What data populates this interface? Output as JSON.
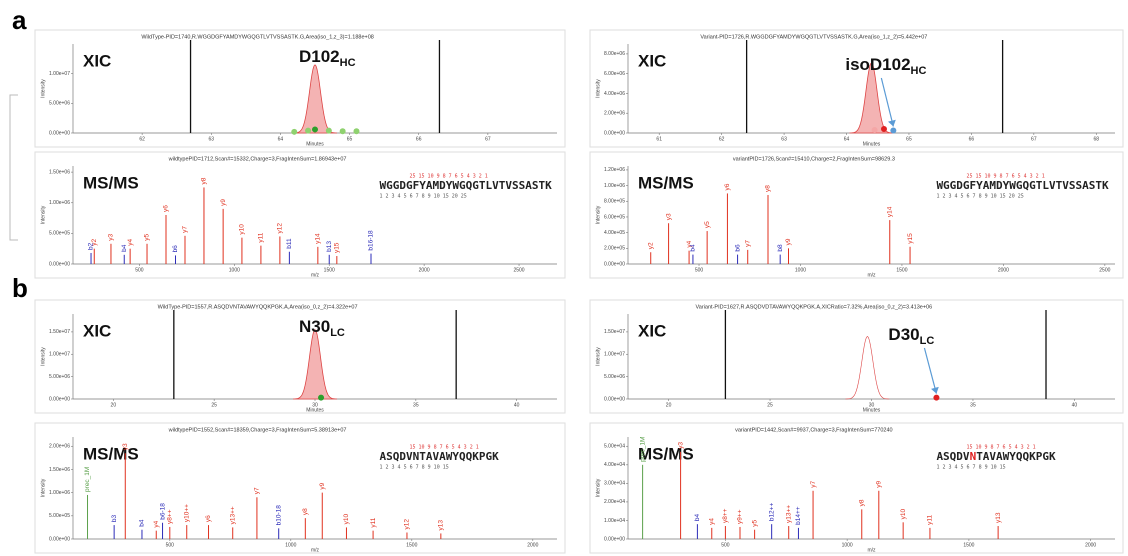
{
  "figure_labels": [
    "a",
    "b"
  ],
  "chart_data": [
    {
      "type": "area",
      "header": "WildType-PID=1740,R.WGGDGFYAMDYWGQGTLVTVSSASTK.G,Area(iso_1,z_3)=1.188e+08",
      "tag": "XIC",
      "label": {
        "text": "D102",
        "sub": "HC"
      },
      "arrow": false,
      "x_label": "Minutes",
      "y_label": "Intensity",
      "xlim": [
        61,
        68
      ],
      "xticks": [
        62,
        63,
        64,
        65,
        66,
        67
      ],
      "ylim": [
        0,
        15000000
      ],
      "yticks": [
        {
          "value": 0,
          "label": "0.00e+00"
        },
        {
          "value": 5000000,
          "label": "5.00e+06"
        },
        {
          "value": 10000000,
          "label": "1.00e+07"
        }
      ],
      "windows": [
        62.7,
        66.3
      ],
      "peaks": [
        {
          "rt": 64.5,
          "height": 11500000,
          "style": "filled"
        }
      ],
      "points": [
        {
          "rt": 64.2,
          "height": 200000,
          "color": "#8fd16f"
        },
        {
          "rt": 64.4,
          "height": 400000,
          "color": "#8fd16f"
        },
        {
          "rt": 64.5,
          "height": 600000,
          "color": "#2ca02c"
        },
        {
          "rt": 64.7,
          "height": 400000,
          "color": "#8fd16f"
        },
        {
          "rt": 64.9,
          "height": 300000,
          "color": "#8fd16f"
        },
        {
          "rt": 65.1,
          "height": 300000,
          "color": "#8fd16f"
        }
      ]
    },
    {
      "type": "area",
      "header": "Variant-PID=1726,R.WGGDGFYAMDYWGQGTLVTVSSASTK.G,Area(iso_1,z_2)=5.442e+07",
      "tag": "XIC",
      "label": {
        "text": "isoD102",
        "sub": "HC"
      },
      "arrow": true,
      "x_label": "Minutes",
      "y_label": "Intensity",
      "xlim": [
        60.5,
        68.3
      ],
      "xticks": [
        61,
        62,
        63,
        64,
        65,
        66,
        67,
        68
      ],
      "ylim": [
        0,
        9000000
      ],
      "yticks": [
        {
          "value": 0,
          "label": "0.00e+00"
        },
        {
          "value": 2000000,
          "label": "2.00e+06"
        },
        {
          "value": 4000000,
          "label": "4.00e+06"
        },
        {
          "value": 6000000,
          "label": "6.00e+06"
        },
        {
          "value": 8000000,
          "label": "8.00e+06"
        }
      ],
      "windows": [
        62.4,
        66.5
      ],
      "peaks": [
        {
          "rt": 64.4,
          "height": 7100000,
          "style": "filled"
        }
      ],
      "points": [
        {
          "rt": 64.45,
          "height": 300000,
          "color": "#f4a6a6"
        },
        {
          "rt": 64.6,
          "height": 400000,
          "color": "#e02020"
        },
        {
          "rt": 64.75,
          "height": 250000,
          "color": "#5b9bd5"
        }
      ]
    },
    {
      "type": "stem",
      "header": "wildtypePID=1712,Scan#=15332,Charge=3,FragIntenSum=1.86943e+07",
      "tag": "MS/MS",
      "sequence": [
        "WGGDGFYAMDYWGQGTLVTVSSASTK"
      ],
      "highlight": -1,
      "ladder_top": "25        15      10 9 8 7 6 5 4 3 2 1",
      "ladder_bottom": "1 2 3 4 5 6 7 8 9 10       15        20        25",
      "x_label": "m/z",
      "y_label": "Intensity",
      "xlim": [
        150,
        2700
      ],
      "xticks": [
        500,
        1000,
        1500,
        2000,
        2500
      ],
      "ylim": [
        0,
        1600000
      ],
      "yticks": [
        {
          "value": 0,
          "label": "0.00e+00"
        },
        {
          "value": 500000,
          "label": "5.00e+05"
        },
        {
          "value": 1000000,
          "label": "1.00e+06"
        },
        {
          "value": 1500000,
          "label": "1.50e+06"
        }
      ],
      "peaks": [
        {
          "ion": "b2",
          "mz": 245,
          "intensity": 180000,
          "series": "b"
        },
        {
          "ion": "y2",
          "mz": 262,
          "intensity": 250000,
          "series": "y"
        },
        {
          "ion": "y3",
          "mz": 350,
          "intensity": 330000,
          "series": "y"
        },
        {
          "ion": "b4",
          "mz": 420,
          "intensity": 150000,
          "series": "b"
        },
        {
          "ion": "y4",
          "mz": 451,
          "intensity": 250000,
          "series": "y"
        },
        {
          "ion": "y5",
          "mz": 540,
          "intensity": 330000,
          "series": "y"
        },
        {
          "ion": "y6",
          "mz": 640,
          "intensity": 800000,
          "series": "y"
        },
        {
          "ion": "b6",
          "mz": 690,
          "intensity": 140000,
          "series": "b"
        },
        {
          "ion": "y7",
          "mz": 740,
          "intensity": 460000,
          "series": "y"
        },
        {
          "ion": "y8",
          "mz": 840,
          "intensity": 1250000,
          "series": "y"
        },
        {
          "ion": "y9",
          "mz": 941,
          "intensity": 900000,
          "series": "y"
        },
        {
          "ion": "y10",
          "mz": 1040,
          "intensity": 430000,
          "series": "y"
        },
        {
          "ion": "y11",
          "mz": 1140,
          "intensity": 300000,
          "series": "y"
        },
        {
          "ion": "y12",
          "mz": 1240,
          "intensity": 450000,
          "series": "y"
        },
        {
          "ion": "b11",
          "mz": 1290,
          "intensity": 200000,
          "series": "b"
        },
        {
          "ion": "y14",
          "mz": 1440,
          "intensity": 280000,
          "series": "y"
        },
        {
          "ion": "b13",
          "mz": 1500,
          "intensity": 150000,
          "series": "b"
        },
        {
          "ion": "y15",
          "mz": 1540,
          "intensity": 130000,
          "series": "y"
        },
        {
          "ion": "b16-18",
          "mz": 1720,
          "intensity": 170000,
          "series": "b"
        }
      ]
    },
    {
      "type": "stem",
      "header": "variantPID=1726,Scan#=15410,Charge=2,FragIntenSum=98629.3",
      "tag": "MS/MS",
      "sequence": [
        "WGGDGFYAMDYWGQGTLVTVSSASTK"
      ],
      "highlight": -1,
      "ladder_top": "25        15      10 9 8 7 6 5 4 3 2 1",
      "ladder_bottom": "1 2 3 4 5 6 7 8 9 10       15        20        25",
      "x_label": "m/z",
      "y_label": "Intensity",
      "xlim": [
        150,
        2550
      ],
      "xticks": [
        500,
        1000,
        1500,
        2000,
        2500
      ],
      "ylim": [
        0,
        1250000
      ],
      "yticks": [
        {
          "value": 0,
          "label": "0.00e+00"
        },
        {
          "value": 200000,
          "label": "2.00e+05"
        },
        {
          "value": 400000,
          "label": "4.00e+05"
        },
        {
          "value": 600000,
          "label": "6.00e+05"
        },
        {
          "value": 800000,
          "label": "8.00e+05"
        },
        {
          "value": 1000000,
          "label": "1.00e+06"
        },
        {
          "value": 1200000,
          "label": "1.20e+06"
        }
      ],
      "peaks": [
        {
          "ion": "y2",
          "mz": 262,
          "intensity": 150000,
          "series": "y"
        },
        {
          "ion": "y3",
          "mz": 350,
          "intensity": 520000,
          "series": "y"
        },
        {
          "ion": "y4",
          "mz": 451,
          "intensity": 170000,
          "series": "y"
        },
        {
          "ion": "b4",
          "mz": 470,
          "intensity": 120000,
          "series": "b"
        },
        {
          "ion": "y5",
          "mz": 540,
          "intensity": 420000,
          "series": "y"
        },
        {
          "ion": "y6",
          "mz": 640,
          "intensity": 900000,
          "series": "y"
        },
        {
          "ion": "b6",
          "mz": 690,
          "intensity": 120000,
          "series": "b"
        },
        {
          "ion": "y7",
          "mz": 740,
          "intensity": 180000,
          "series": "y"
        },
        {
          "ion": "y8",
          "mz": 840,
          "intensity": 880000,
          "series": "y"
        },
        {
          "ion": "b8",
          "mz": 900,
          "intensity": 120000,
          "series": "b"
        },
        {
          "ion": "y9",
          "mz": 941,
          "intensity": 200000,
          "series": "y"
        },
        {
          "ion": "y14",
          "mz": 1440,
          "intensity": 560000,
          "series": "y"
        },
        {
          "ion": "y15",
          "mz": 1540,
          "intensity": 220000,
          "series": "y"
        }
      ]
    },
    {
      "type": "area",
      "header": "WildType-PID=1557,R.ASQDVNTAVAWYQQKPGK.A,Area(iso_0,z_2)=4.322e+07",
      "tag": "XIC",
      "label": {
        "text": "N30",
        "sub": "LC"
      },
      "arrow": false,
      "x_label": "Minutes",
      "y_label": "Intensity",
      "xlim": [
        18,
        42
      ],
      "xticks": [
        20,
        25,
        30,
        35,
        40
      ],
      "ylim": [
        0,
        19000000
      ],
      "yticks": [
        {
          "value": 0,
          "label": "0.00e+00"
        },
        {
          "value": 5000000,
          "label": "5.00e+06"
        },
        {
          "value": 10000000,
          "label": "1.00e+07"
        },
        {
          "value": 15000000,
          "label": "1.50e+07"
        }
      ],
      "windows": [
        23,
        37
      ],
      "peaks": [
        {
          "rt": 30,
          "height": 15500000,
          "style": "filled"
        }
      ],
      "points": [
        {
          "rt": 30.3,
          "height": 300000,
          "color": "#2ca02c"
        }
      ]
    },
    {
      "type": "area",
      "header": "Variant-PID=1627,R.ASQDVDTAVAWYQQKPGK.A,XICRatio=7.32%,Area(iso_0,z_2)=3.413e+06",
      "tag": "XIC",
      "label": {
        "text": "D30",
        "sub": "LC"
      },
      "arrow": true,
      "x_label": "Minutes",
      "y_label": "Intensity",
      "xlim": [
        18,
        42
      ],
      "xticks": [
        20,
        25,
        30,
        35,
        40
      ],
      "ylim": [
        0,
        19000000
      ],
      "yticks": [
        {
          "value": 0,
          "label": "0.00e+00"
        },
        {
          "value": 5000000,
          "label": "5.00e+06"
        },
        {
          "value": 10000000,
          "label": "1.00e+07"
        },
        {
          "value": 15000000,
          "label": "1.50e+07"
        }
      ],
      "windows": [
        22.8,
        38.6
      ],
      "peaks": [
        {
          "rt": 29.8,
          "height": 14000000,
          "style": "outline"
        }
      ],
      "points": [
        {
          "rt": 33.2,
          "height": 300000,
          "color": "#e02020"
        }
      ]
    },
    {
      "type": "stem",
      "header": "wildtypePID=1552,Scan#=18359,Charge=3,FragIntenSum=5.38913e+07",
      "tag": "MS/MS",
      "sequence": [
        "ASQDVNTAVAWYQQKPGK"
      ],
      "highlight": -1,
      "ladder_top": "15      10 9 8 7 6 5 4 3 2 1",
      "ladder_bottom": "1 2 3 4 5 6 7 8 9 10      15",
      "x_label": "m/z",
      "y_label": "Intensity",
      "xlim": [
        100,
        2100
      ],
      "xticks": [
        500,
        1000,
        1500,
        2000
      ],
      "ylim": [
        0,
        2200000
      ],
      "yticks": [
        {
          "value": 0,
          "label": "0.00e+00"
        },
        {
          "value": 500000,
          "label": "5.00e+05"
        },
        {
          "value": 1000000,
          "label": "1.00e+06"
        },
        {
          "value": 1500000,
          "label": "1.50e+06"
        },
        {
          "value": 2000000,
          "label": "2.00e+06"
        }
      ],
      "peaks": [
        {
          "ion": "prec_1M",
          "mz": 160,
          "intensity": 950000,
          "series": "p"
        },
        {
          "ion": "b3",
          "mz": 270,
          "intensity": 300000,
          "series": "b"
        },
        {
          "ion": "y3",
          "mz": 316,
          "intensity": 1850000,
          "series": "y"
        },
        {
          "ion": "b4",
          "mz": 385,
          "intensity": 200000,
          "series": "b"
        },
        {
          "ion": "y4",
          "mz": 444,
          "intensity": 180000,
          "series": "y"
        },
        {
          "ion": "b6-18",
          "mz": 470,
          "intensity": 350000,
          "series": "b"
        },
        {
          "ion": "y8++",
          "mz": 500,
          "intensity": 260000,
          "series": "y"
        },
        {
          "ion": "y10++",
          "mz": 570,
          "intensity": 300000,
          "series": "y"
        },
        {
          "ion": "y6",
          "mz": 660,
          "intensity": 300000,
          "series": "y"
        },
        {
          "ion": "y13++",
          "mz": 760,
          "intensity": 250000,
          "series": "y"
        },
        {
          "ion": "y7",
          "mz": 860,
          "intensity": 900000,
          "series": "y"
        },
        {
          "ion": "b10-18",
          "mz": 950,
          "intensity": 230000,
          "series": "b"
        },
        {
          "ion": "y8",
          "mz": 1060,
          "intensity": 450000,
          "series": "y"
        },
        {
          "ion": "y9",
          "mz": 1130,
          "intensity": 1000000,
          "series": "y"
        },
        {
          "ion": "y10",
          "mz": 1230,
          "intensity": 250000,
          "series": "y"
        },
        {
          "ion": "y11",
          "mz": 1340,
          "intensity": 180000,
          "series": "y"
        },
        {
          "ion": "y12",
          "mz": 1480,
          "intensity": 140000,
          "series": "y"
        },
        {
          "ion": "y13",
          "mz": 1620,
          "intensity": 120000,
          "series": "y"
        }
      ]
    },
    {
      "type": "stem",
      "header": "variantPID=1442,Scan#=9937,Charge=3,FragIntenSum=770240",
      "tag": "MS/MS",
      "sequence": [
        "ASQDV",
        "N",
        "TAVAWYQQKPGK"
      ],
      "highlight": 1,
      "ladder_top": "15      10 9 8 7 6 5 4 3 2 1",
      "ladder_bottom": "1 2 3 4 5 6 7 8 9 10      15",
      "x_label": "m/z",
      "y_label": "Intensity",
      "xlim": [
        100,
        2100
      ],
      "xticks": [
        500,
        1000,
        1500,
        2000
      ],
      "ylim": [
        0,
        55000
      ],
      "yticks": [
        {
          "value": 0,
          "label": "0.00e+00"
        },
        {
          "value": 10000,
          "label": "1.00e+04"
        },
        {
          "value": 20000,
          "label": "2.00e+04"
        },
        {
          "value": 30000,
          "label": "3.00e+04"
        },
        {
          "value": 40000,
          "label": "4.00e+04"
        },
        {
          "value": 50000,
          "label": "5.00e+04"
        }
      ],
      "peaks": [
        {
          "ion": "prec_1M",
          "mz": 160,
          "intensity": 40000,
          "series": "p"
        },
        {
          "ion": "y3",
          "mz": 316,
          "intensity": 47000,
          "series": "y"
        },
        {
          "ion": "b4",
          "mz": 385,
          "intensity": 8000,
          "series": "b"
        },
        {
          "ion": "y4",
          "mz": 444,
          "intensity": 6000,
          "series": "y"
        },
        {
          "ion": "y8++",
          "mz": 500,
          "intensity": 7000,
          "series": "y"
        },
        {
          "ion": "y9++",
          "mz": 560,
          "intensity": 6500,
          "series": "y"
        },
        {
          "ion": "y5",
          "mz": 620,
          "intensity": 5000,
          "series": "y"
        },
        {
          "ion": "b12++",
          "mz": 690,
          "intensity": 8000,
          "series": "b"
        },
        {
          "ion": "y13++",
          "mz": 760,
          "intensity": 7000,
          "series": "y"
        },
        {
          "ion": "b14++",
          "mz": 800,
          "intensity": 6000,
          "series": "b"
        },
        {
          "ion": "y7",
          "mz": 860,
          "intensity": 26000,
          "series": "y"
        },
        {
          "ion": "y8",
          "mz": 1060,
          "intensity": 16000,
          "series": "y"
        },
        {
          "ion": "y9",
          "mz": 1130,
          "intensity": 26000,
          "series": "y"
        },
        {
          "ion": "y10",
          "mz": 1230,
          "intensity": 9000,
          "series": "y"
        },
        {
          "ion": "y11",
          "mz": 1340,
          "intensity": 6000,
          "series": "y"
        },
        {
          "ion": "y13",
          "mz": 1620,
          "intensity": 7000,
          "series": "y"
        }
      ]
    }
  ]
}
